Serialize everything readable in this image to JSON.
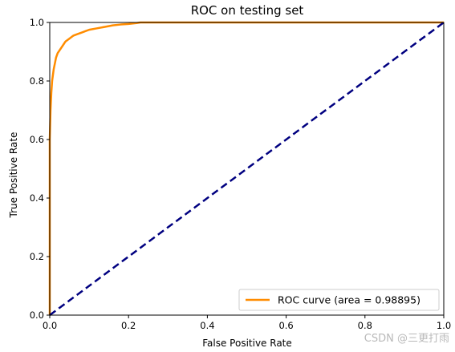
{
  "chart_data": {
    "type": "line",
    "title": "ROC on testing set",
    "xlabel": "False Positive Rate",
    "ylabel": "True Positive Rate",
    "xlim": [
      0.0,
      1.0
    ],
    "ylim": [
      0.0,
      1.0
    ],
    "x_ticks": [
      "0.0",
      "0.2",
      "0.4",
      "0.6",
      "0.8",
      "1.0"
    ],
    "y_ticks": [
      "0.0",
      "0.2",
      "0.4",
      "0.6",
      "0.8",
      "1.0"
    ],
    "grid": false,
    "legend_position": "lower-right",
    "series": [
      {
        "name": "ROC curve (area = 0.98895)",
        "color": "#ff8c00",
        "style": "solid",
        "x": [
          0.0,
          0.0,
          0.002,
          0.004,
          0.006,
          0.008,
          0.01,
          0.013,
          0.016,
          0.02,
          0.025,
          0.03,
          0.035,
          0.04,
          0.05,
          0.06,
          0.07,
          0.08,
          0.09,
          0.1,
          0.12,
          0.14,
          0.16,
          0.18,
          0.2,
          0.22,
          0.23,
          1.0
        ],
        "y": [
          0.0,
          0.6,
          0.7,
          0.76,
          0.8,
          0.82,
          0.84,
          0.86,
          0.88,
          0.895,
          0.905,
          0.915,
          0.925,
          0.935,
          0.945,
          0.955,
          0.96,
          0.965,
          0.97,
          0.975,
          0.98,
          0.985,
          0.99,
          0.993,
          0.995,
          0.998,
          1.0,
          1.0
        ]
      },
      {
        "color": "#000080",
        "style": "dashed",
        "x": [
          0.0,
          1.0
        ],
        "y": [
          0.0,
          1.0
        ]
      }
    ]
  },
  "watermark": "CSDN @三更打雨"
}
